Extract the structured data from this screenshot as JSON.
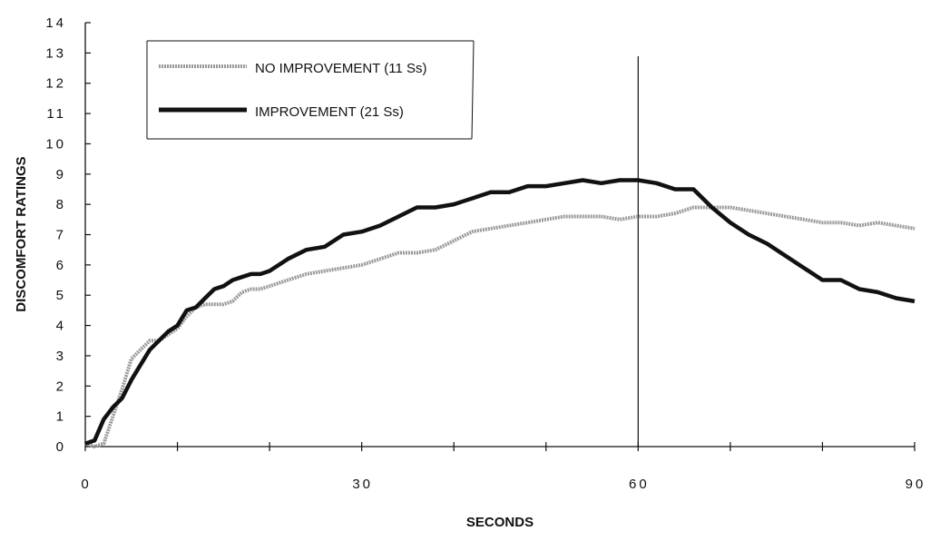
{
  "chart_data": {
    "type": "line",
    "xlabel": "SECONDS",
    "ylabel": "DISCOMFORT RATINGS",
    "xlim": [
      0,
      90
    ],
    "ylim": [
      0,
      14
    ],
    "x_ticks": [
      0,
      30,
      60,
      90
    ],
    "y_ticks": [
      0,
      1,
      2,
      3,
      4,
      5,
      6,
      7,
      8,
      9,
      10,
      11,
      12,
      13,
      14
    ],
    "reference_line_x": 60,
    "legend_position": "top-left",
    "x": [
      0,
      1,
      2,
      3,
      4,
      5,
      6,
      7,
      8,
      9,
      10,
      11,
      12,
      13,
      14,
      15,
      16,
      17,
      18,
      19,
      20,
      22,
      24,
      26,
      28,
      30,
      32,
      34,
      36,
      38,
      40,
      42,
      44,
      46,
      48,
      50,
      52,
      54,
      56,
      58,
      60,
      62,
      64,
      66,
      68,
      70,
      72,
      74,
      76,
      78,
      80,
      82,
      84,
      86,
      88,
      90
    ],
    "series": [
      {
        "name": "NO IMPROVEMENT (11 Ss)",
        "style": "gray-textured",
        "color": "#9a9a9a",
        "values": [
          0.1,
          0.0,
          0.1,
          1.0,
          1.9,
          2.9,
          3.2,
          3.5,
          3.5,
          3.7,
          3.9,
          4.3,
          4.6,
          4.7,
          4.7,
          4.7,
          4.8,
          5.1,
          5.2,
          5.2,
          5.3,
          5.5,
          5.7,
          5.8,
          5.9,
          6.0,
          6.2,
          6.4,
          6.4,
          6.5,
          6.8,
          7.1,
          7.2,
          7.3,
          7.4,
          7.5,
          7.6,
          7.6,
          7.6,
          7.5,
          7.6,
          7.6,
          7.7,
          7.9,
          7.9,
          7.9,
          7.8,
          7.7,
          7.6,
          7.5,
          7.4,
          7.4,
          7.3,
          7.4,
          7.3,
          7.2
        ]
      },
      {
        "name": "IMPROVEMENT (21 Ss)",
        "style": "black-thick",
        "color": "#111111",
        "values": [
          0.1,
          0.2,
          0.9,
          1.3,
          1.6,
          2.2,
          2.7,
          3.2,
          3.5,
          3.8,
          4.0,
          4.5,
          4.6,
          4.9,
          5.2,
          5.3,
          5.5,
          5.6,
          5.7,
          5.7,
          5.8,
          6.2,
          6.5,
          6.6,
          7.0,
          7.1,
          7.3,
          7.6,
          7.9,
          7.9,
          8.0,
          8.2,
          8.4,
          8.4,
          8.6,
          8.6,
          8.7,
          8.8,
          8.7,
          8.8,
          8.8,
          8.7,
          8.5,
          8.5,
          7.9,
          7.4,
          7.0,
          6.7,
          6.3,
          5.9,
          5.5,
          5.5,
          5.2,
          5.1,
          4.9,
          4.8
        ]
      }
    ]
  }
}
